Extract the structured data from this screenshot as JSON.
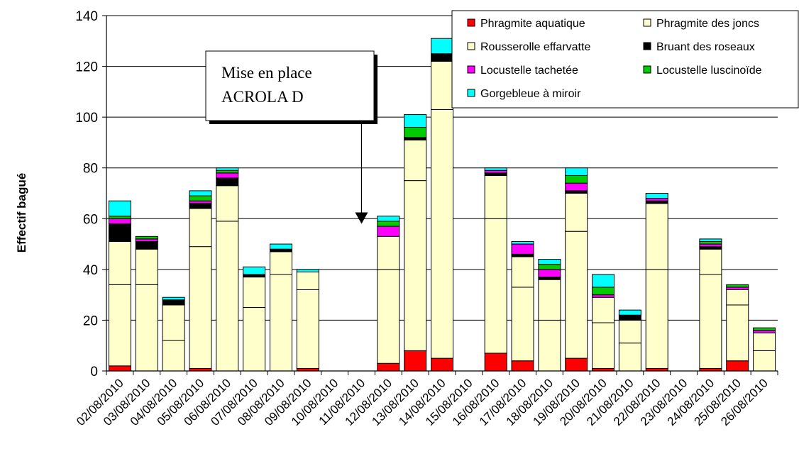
{
  "chart_data": {
    "type": "bar",
    "stacked": true,
    "title": "",
    "xlabel": "",
    "ylabel": "Effectif bagué",
    "ylim": [
      0,
      140
    ],
    "yticks": [
      0,
      20,
      40,
      60,
      80,
      100,
      120,
      140
    ],
    "grid": true,
    "legend_position": "top-right",
    "categories": [
      "02/08/2010",
      "03/08/2010",
      "04/08/2010",
      "05/08/2010",
      "06/08/2010",
      "07/08/2010",
      "08/08/2010",
      "09/08/2010",
      "10/08/2010",
      "11/08/2010",
      "12/08/2010",
      "13/08/2010",
      "14/08/2010",
      "15/08/2010",
      "16/08/2010",
      "17/08/2010",
      "18/08/2010",
      "19/08/2010",
      "20/08/2010",
      "21/08/2010",
      "22/08/2010",
      "23/08/2010",
      "24/08/2010",
      "25/08/2010",
      "26/08/2010"
    ],
    "series": [
      {
        "name": "Phragmite aquatique",
        "color": "#ff0000",
        "values": [
          2,
          0,
          0,
          1,
          0,
          0,
          0,
          1,
          0,
          0,
          3,
          8,
          5,
          0,
          7,
          4,
          0,
          5,
          1,
          0,
          1,
          0,
          1,
          4,
          0
        ]
      },
      {
        "name": "Phragmite des joncs",
        "color": "#ffffcc",
        "values": [
          32,
          34,
          12,
          48,
          59,
          25,
          38,
          31,
          0,
          0,
          37,
          67,
          98,
          0,
          53,
          29,
          20,
          50,
          18,
          11,
          39,
          0,
          37,
          22,
          8
        ]
      },
      {
        "name": "Rousserolle effarvatte",
        "color": "#ffffcc",
        "values": [
          17,
          14,
          14,
          15,
          14,
          12,
          9,
          7,
          0,
          0,
          13,
          16,
          19,
          0,
          17,
          12,
          16,
          15,
          10,
          9,
          26,
          0,
          10,
          6,
          7
        ]
      },
      {
        "name": "Bruant des roseaux",
        "color": "#000000",
        "values": [
          7,
          3,
          2,
          2,
          3,
          1,
          1,
          0,
          0,
          0,
          0,
          1,
          3,
          0,
          1,
          1,
          1,
          1,
          0,
          2,
          1,
          0,
          1,
          0,
          0
        ]
      },
      {
        "name": "Locustelle tachetée",
        "color": "#ff00ff",
        "values": [
          2,
          1,
          0,
          1,
          2,
          0,
          0,
          0,
          0,
          0,
          4,
          0,
          0,
          0,
          1,
          4,
          3,
          3,
          1,
          0,
          1,
          0,
          1,
          1,
          1
        ]
      },
      {
        "name": "Locustelle luscinoïde",
        "color": "#00cc00",
        "values": [
          1,
          1,
          0,
          2,
          1,
          0,
          0,
          0,
          0,
          0,
          2,
          4,
          0,
          0,
          0,
          0,
          2,
          3,
          3,
          0,
          0,
          0,
          1,
          1,
          1
        ]
      },
      {
        "name": "Gorgebleue à miroir",
        "color": "#00ffff",
        "values": [
          6,
          0,
          1,
          2,
          1,
          3,
          2,
          1,
          0,
          0,
          2,
          5,
          6,
          0,
          1,
          1,
          2,
          3,
          5,
          2,
          2,
          0,
          1,
          0,
          0
        ]
      }
    ],
    "annotation": {
      "lines": [
        "Mise en place",
        "ACROLA D"
      ],
      "arrow_to_category": "11/08/2010",
      "arrow_to_value": 58
    }
  }
}
